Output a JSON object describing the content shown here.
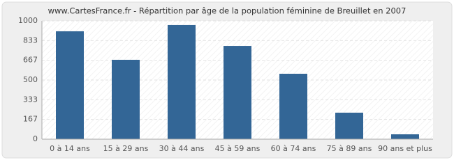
{
  "chart_data": {
    "type": "bar",
    "title": "www.CartesFrance.fr - Répartition par âge de la population féminine de Breuillet en 2007",
    "categories": [
      "0 à 14 ans",
      "15 à 29 ans",
      "30 à 44 ans",
      "45 à 59 ans",
      "60 à 74 ans",
      "75 à 89 ans",
      "90 ans et plus"
    ],
    "values": [
      912,
      671,
      965,
      788,
      553,
      224,
      41
    ],
    "color": "#336696",
    "ylim": [
      0,
      1000
    ],
    "yticks": [
      0,
      167,
      333,
      500,
      667,
      833,
      1000
    ],
    "grid": true
  }
}
